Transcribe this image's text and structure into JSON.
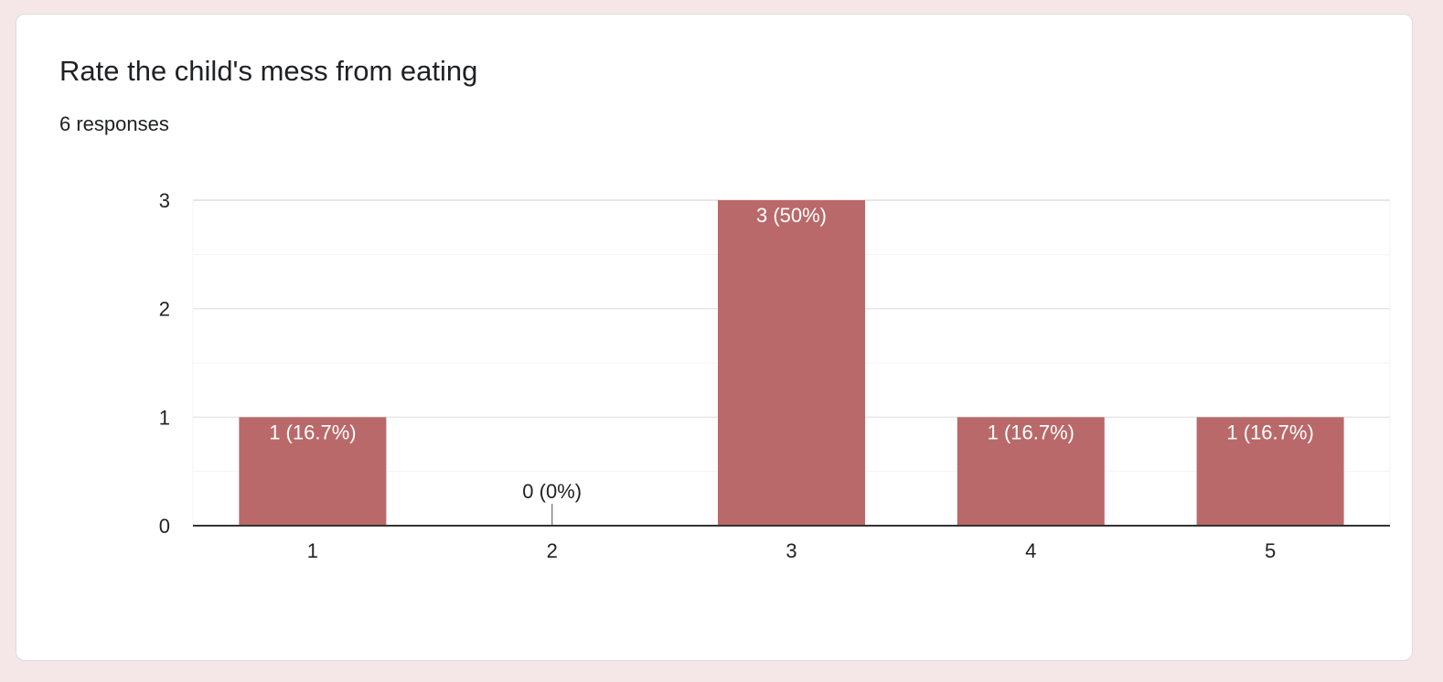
{
  "card": {
    "title": "Rate the child's mess from eating",
    "responses": "6 responses"
  },
  "colors": {
    "bar": "#b9696a",
    "background": "#f5e7e8",
    "gridline": "#e6e6e6",
    "minor_gridline": "#f3f3f3",
    "axis": "#333333"
  },
  "chart_data": {
    "type": "bar",
    "categories": [
      "1",
      "2",
      "3",
      "4",
      "5"
    ],
    "values": [
      1,
      0,
      3,
      1,
      1
    ],
    "data_labels": [
      "1 (16.7%)",
      "0 (0%)",
      "3 (50%)",
      "1 (16.7%)",
      "1 (16.7%)"
    ],
    "y_ticks": [
      "0",
      "1",
      "2",
      "3"
    ],
    "ylim": [
      0,
      3
    ],
    "title": "",
    "xlabel": "",
    "ylabel": "",
    "grid": true,
    "legend": "none"
  }
}
